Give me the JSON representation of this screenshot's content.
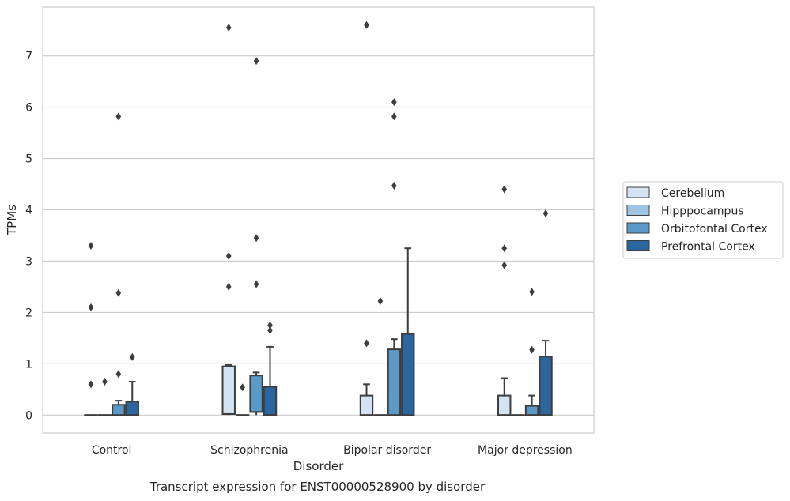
{
  "chart_data": {
    "type": "box",
    "title": "Transcript expression for ENST00000528900 by disorder",
    "xlabel": "Disorder",
    "ylabel": "TPMs",
    "categories": [
      "Control",
      "Schizophrenia",
      "Bipolar disorder",
      "Major depression"
    ],
    "ylim": [
      -0.35,
      7.95
    ],
    "yticks": [
      0,
      1,
      2,
      3,
      4,
      5,
      6,
      7
    ],
    "grid": true,
    "legend_position": "right",
    "series": [
      {
        "name": "Cerebellum",
        "color": "#d4e3f3",
        "boxes": [
          {
            "q1": 0,
            "median": 0,
            "q3": 0,
            "whisker_low": 0,
            "whisker_high": 0,
            "outliers": [
              0.6,
              2.1,
              3.3
            ]
          },
          {
            "q1": 0.02,
            "median": 0.02,
            "q3": 0.95,
            "whisker_low": 0,
            "whisker_high": 0.98,
            "outliers": [
              2.5,
              3.1,
              7.55
            ]
          },
          {
            "q1": 0,
            "median": 0,
            "q3": 0.38,
            "whisker_low": 0,
            "whisker_high": 0.6,
            "outliers": [
              1.4,
              7.6
            ]
          },
          {
            "q1": 0,
            "median": 0,
            "q3": 0.38,
            "whisker_low": 0,
            "whisker_high": 0.72,
            "outliers": [
              2.92,
              3.25,
              4.4
            ]
          }
        ]
      },
      {
        "name": "Hipppocampus",
        "color": "#9ec5e1",
        "boxes": [
          {
            "q1": 0,
            "median": 0,
            "q3": 0,
            "whisker_low": 0,
            "whisker_high": 0,
            "outliers": [
              0.65
            ]
          },
          {
            "q1": 0,
            "median": 0,
            "q3": 0,
            "whisker_low": 0,
            "whisker_high": 0,
            "outliers": [
              0.54
            ]
          },
          {
            "q1": 0,
            "median": 0,
            "q3": 0,
            "whisker_low": 0,
            "whisker_high": 0,
            "outliers": [
              2.22
            ]
          },
          {
            "q1": 0,
            "median": 0,
            "q3": 0,
            "whisker_low": 0,
            "whisker_high": 0,
            "outliers": []
          }
        ]
      },
      {
        "name": "Orbitofontal Cortex",
        "color": "#5b9ac6",
        "boxes": [
          {
            "q1": 0,
            "median": 0,
            "q3": 0.2,
            "whisker_low": 0,
            "whisker_high": 0.28,
            "outliers": [
              0.8,
              2.38,
              5.82
            ]
          },
          {
            "q1": 0.06,
            "median": 0.06,
            "q3": 0.77,
            "whisker_low": 0,
            "whisker_high": 0.83,
            "outliers": [
              2.55,
              3.45,
              6.9
            ]
          },
          {
            "q1": 0,
            "median": 0,
            "q3": 1.28,
            "whisker_low": 0,
            "whisker_high": 1.48,
            "outliers": [
              4.47,
              5.82,
              6.1
            ]
          },
          {
            "q1": 0,
            "median": 0,
            "q3": 0.18,
            "whisker_low": 0,
            "whisker_high": 0.38,
            "outliers": [
              1.27,
              2.4
            ]
          }
        ]
      },
      {
        "name": "Prefrontal Cortex",
        "color": "#2c66a1",
        "boxes": [
          {
            "q1": 0,
            "median": 0,
            "q3": 0.26,
            "whisker_low": 0,
            "whisker_high": 0.65,
            "outliers": [
              1.13
            ]
          },
          {
            "q1": 0,
            "median": 0,
            "q3": 0.55,
            "whisker_low": 0,
            "whisker_high": 1.33,
            "outliers": [
              1.65,
              1.75
            ]
          },
          {
            "q1": 0,
            "median": 0,
            "q3": 1.58,
            "whisker_low": 0,
            "whisker_high": 3.25,
            "outliers": []
          },
          {
            "q1": 0,
            "median": 0,
            "q3": 1.14,
            "whisker_low": 0,
            "whisker_high": 1.45,
            "outliers": [
              3.93
            ]
          }
        ]
      }
    ]
  }
}
